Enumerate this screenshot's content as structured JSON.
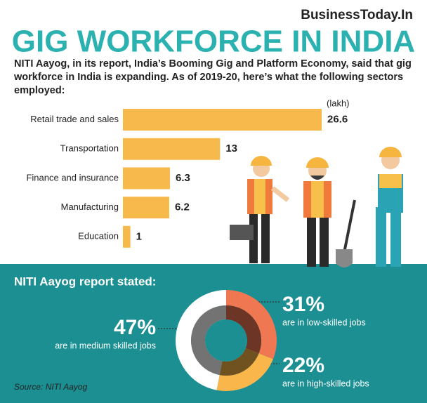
{
  "brand": "BusinessToday.In",
  "title": "GIG WORKFORCE IN INDIA",
  "intro": "NITI Aayog, in its report, India’s Booming Gig and Platform Economy, said that gig workforce in India is expanding. As of 2019-20, here’s what the following sectors employed:",
  "chart_data": [
    {
      "type": "bar",
      "unit_label": "(lakh)",
      "categories": [
        "Retail trade and sales",
        "Transportation",
        "Finance and insurance",
        "Manufacturing",
        "Education"
      ],
      "values": [
        26.6,
        13,
        6.3,
        6.2,
        1
      ],
      "color": "#f8b94c"
    },
    {
      "type": "donut",
      "title": "NITI Aayog report stated:",
      "series": [
        {
          "name": "are in low-skilled jobs",
          "color": "#ef7752",
          "values": [
            31
          ],
          "value_labels": [
            "31%"
          ]
        },
        {
          "name": "are in high-skilled jobs",
          "color": "#f8b64b",
          "values": [
            22
          ],
          "value_labels": [
            "22%"
          ]
        },
        {
          "name": "are in medium skilled jobs",
          "color": "#ffffff",
          "values": [
            47
          ],
          "value_labels": [
            "47%"
          ]
        }
      ],
      "source": "Source: NITI Aayog"
    }
  ]
}
